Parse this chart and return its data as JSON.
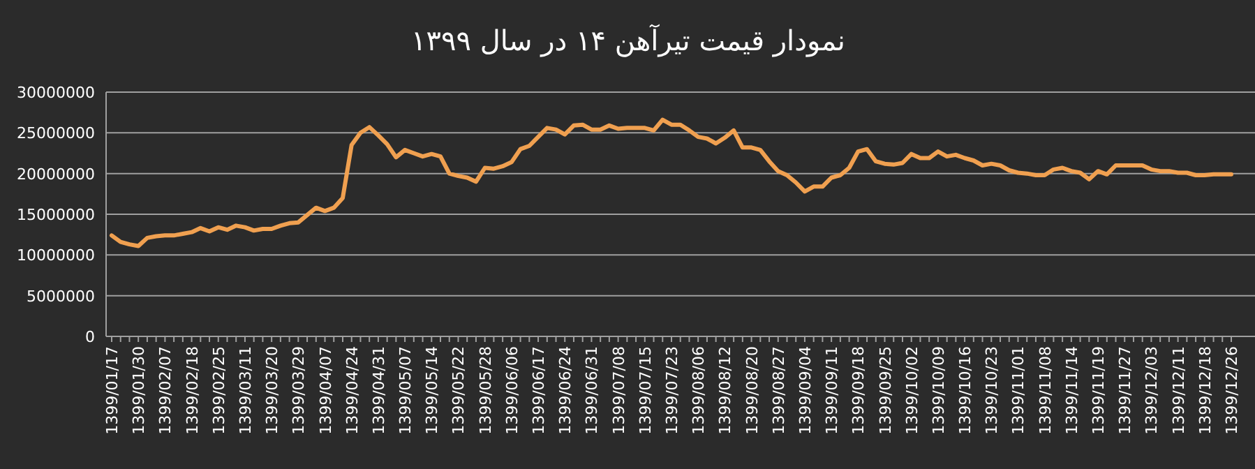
{
  "chart_data": {
    "type": "line",
    "title": "نمودار قیمت تیرآهن ۱۴ در سال ۱۳۹۹",
    "categories": [
      "1399/01/17",
      null,
      null,
      "1399/01/30",
      null,
      null,
      "1399/02/07",
      null,
      null,
      "1399/02/18",
      null,
      null,
      "1399/02/25",
      null,
      null,
      "1399/03/11",
      null,
      null,
      "1399/03/20",
      null,
      null,
      "1399/03/29",
      null,
      null,
      "1399/04/07",
      null,
      null,
      "1399/04/24",
      null,
      null,
      "1399/04/31",
      null,
      null,
      "1399/05/07",
      null,
      null,
      "1399/05/14",
      null,
      null,
      "1399/05/22",
      null,
      null,
      "1399/05/28",
      null,
      null,
      "1399/06/06",
      null,
      null,
      "1399/06/17",
      null,
      null,
      "1399/06/24",
      null,
      null,
      "1399/06/31",
      null,
      null,
      "1399/07/08",
      null,
      null,
      "1399/07/15",
      null,
      null,
      "1399/07/23",
      null,
      null,
      "1399/08/06",
      null,
      null,
      "1399/08/12",
      null,
      null,
      "1399/08/20",
      null,
      null,
      "1399/08/27",
      null,
      null,
      "1399/09/04",
      null,
      null,
      "1399/09/11",
      null,
      null,
      "1399/09/18",
      null,
      null,
      "1399/09/25",
      null,
      null,
      "1399/10/02",
      null,
      null,
      "1399/10/09",
      null,
      null,
      "1399/10/16",
      null,
      null,
      "1399/10/23",
      null,
      null,
      "1399/11/01",
      null,
      null,
      "1399/11/08",
      null,
      null,
      "1399/11/14",
      null,
      null,
      "1399/11/19",
      null,
      null,
      "1399/11/27",
      null,
      null,
      "1399/12/03",
      null,
      null,
      "1399/12/11",
      null,
      null,
      "1399/12/18",
      null,
      null,
      "1399/12/26"
    ],
    "series": [
      {
        "color": "#f0a050",
        "values": [
          12400000,
          11600000,
          11300000,
          11100000,
          12100000,
          12300000,
          12400000,
          12400000,
          12600000,
          12800000,
          13300000,
          12900000,
          13400000,
          13100000,
          13600000,
          13400000,
          13000000,
          13200000,
          13200000,
          13600000,
          13900000,
          14000000,
          14900000,
          15800000,
          15400000,
          15800000,
          17000000,
          23500000,
          25000000,
          25700000,
          24700000,
          23600000,
          22000000,
          22900000,
          22500000,
          22100000,
          22400000,
          22100000,
          20000000,
          19700000,
          19500000,
          19000000,
          20700000,
          20600000,
          20900000,
          21400000,
          23000000,
          23400000,
          24500000,
          25600000,
          25400000,
          24800000,
          25900000,
          26000000,
          25400000,
          25400000,
          25900000,
          25500000,
          25600000,
          25600000,
          25600000,
          25300000,
          26600000,
          26000000,
          26000000,
          25300000,
          24500000,
          24300000,
          23700000,
          24400000,
          25300000,
          23200000,
          23200000,
          22900000,
          21500000,
          20300000,
          19800000,
          18900000,
          17800000,
          18400000,
          18400000,
          19500000,
          19800000,
          20700000,
          22700000,
          23000000,
          21500000,
          21200000,
          21100000,
          21300000,
          22400000,
          21900000,
          21900000,
          22700000,
          22100000,
          22300000,
          21900000,
          21600000,
          21000000,
          21200000,
          21000000,
          20400000,
          20100000,
          20000000,
          19800000,
          19800000,
          20500000,
          20700000,
          20300000,
          20100000,
          19300000,
          20300000,
          19900000,
          21000000,
          21000000,
          21000000,
          21000000,
          20500000,
          20300000,
          20300000,
          20100000,
          20100000,
          19800000,
          19800000,
          19900000,
          19900000,
          19900000
        ]
      }
    ],
    "ylim": [
      0,
      30000000
    ],
    "yticks": [
      0,
      5000000,
      10000000,
      15000000,
      20000000,
      25000000,
      30000000
    ],
    "grid": "y"
  }
}
